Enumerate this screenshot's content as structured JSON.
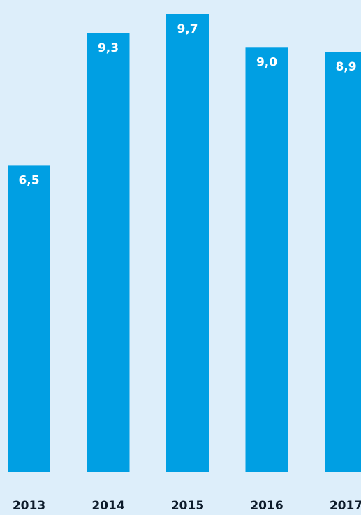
{
  "chart_data": {
    "type": "bar",
    "categories": [
      "2013",
      "2014",
      "2015",
      "2016",
      "2017"
    ],
    "values": [
      6.5,
      9.3,
      9.7,
      9.0,
      8.9
    ],
    "data_labels": [
      "6,5",
      "9,3",
      "9,7",
      "9,0",
      "8,9"
    ],
    "bar_color": "#009fe3",
    "background_color": "#ddeefa",
    "label_color": "#ffffff",
    "category_label_color": "#0d1b2a",
    "ylim": [
      0,
      9.7
    ],
    "grid": false,
    "legend": "none"
  }
}
